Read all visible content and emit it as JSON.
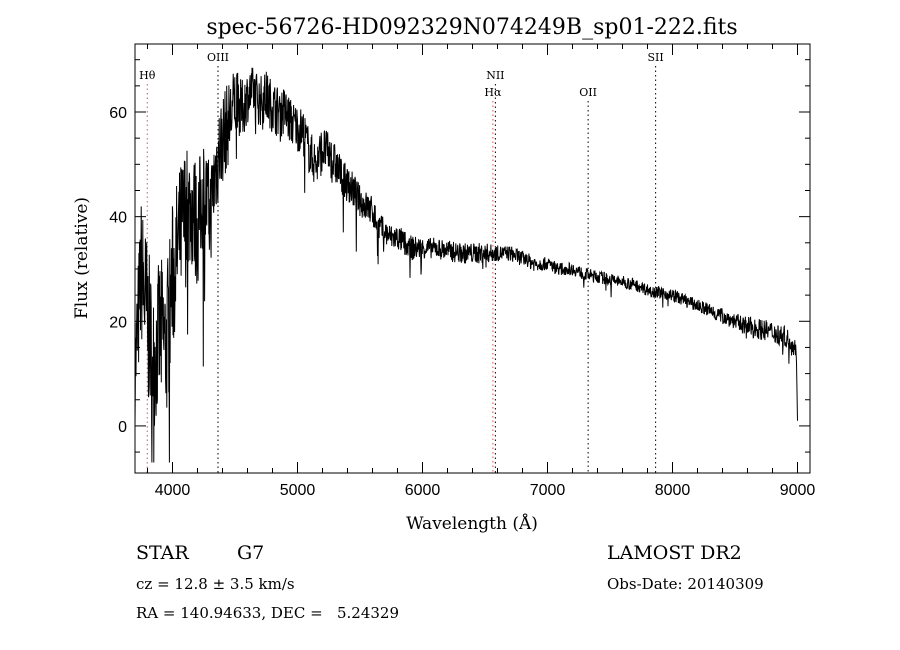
{
  "chart_data": {
    "type": "line",
    "title": "spec-56726-HD092329N074249B_sp01-222.fits",
    "xlabel": "Wavelength (Å)",
    "ylabel": "Flux (relative)",
    "xlim": [
      3700,
      9100
    ],
    "ylim": [
      -9,
      73
    ],
    "xticks": [
      4000,
      5000,
      6000,
      7000,
      8000,
      9000
    ],
    "yticks": [
      0,
      20,
      40,
      60
    ],
    "grid": false,
    "series": [
      {
        "x": [
          3700,
          3750,
          3800,
          3850,
          3900,
          3950,
          4000,
          4050,
          4100,
          4150,
          4200,
          4250,
          4300,
          4350,
          4400,
          4450,
          4500,
          4550,
          4600,
          4650,
          4700,
          4750,
          4800,
          4850,
          4900,
          4950,
          5000,
          5050,
          5100,
          5150,
          5200,
          5250,
          5300,
          5350,
          5400,
          5450,
          5500,
          5550,
          5600,
          5650,
          5700,
          5750,
          5800,
          5850,
          5900,
          6000,
          6100,
          6200,
          6300,
          6400,
          6500,
          6600,
          6700,
          6800,
          6900,
          7000,
          7100,
          7200,
          7300,
          7400,
          7500,
          7600,
          7700,
          7800,
          7900,
          8000,
          8100,
          8200,
          8300,
          8400,
          8500,
          8600,
          8700,
          8800,
          8900,
          8950,
          8990,
          9000
        ],
        "values": [
          10,
          30,
          20,
          12,
          18,
          15,
          28,
          35,
          40,
          42,
          38,
          45,
          40,
          50,
          55,
          58,
          62,
          60,
          63,
          64,
          62,
          63,
          61,
          60,
          60,
          58,
          57,
          56,
          52,
          50,
          53,
          52,
          50,
          48,
          46,
          45,
          43,
          42,
          41,
          38,
          37,
          36,
          36,
          35,
          34,
          34,
          34,
          33.5,
          33,
          33,
          33,
          33,
          33,
          32,
          31,
          31,
          30,
          30,
          29,
          28.5,
          28,
          27.5,
          27,
          26,
          25.5,
          25,
          24,
          23,
          22,
          21,
          20,
          19,
          18.5,
          18,
          17,
          16,
          15,
          1
        ],
        "noise": [
          10,
          14,
          16,
          13,
          15,
          15,
          15,
          14,
          14,
          12,
          12,
          11,
          10,
          10,
          9,
          8,
          7,
          6,
          5,
          5,
          5,
          5,
          5,
          5,
          5,
          4.5,
          4.5,
          4.5,
          4.5,
          4.5,
          4.5,
          4,
          4,
          3.5,
          3.5,
          3.5,
          3,
          3,
          3,
          3,
          2.5,
          2.5,
          2.5,
          2.5,
          2.5,
          2,
          2,
          2,
          2,
          2,
          2,
          1.5,
          1.5,
          1.5,
          1.5,
          1.2,
          1.2,
          1.2,
          1.2,
          1.2,
          1.2,
          1.2,
          1.2,
          1.2,
          1.2,
          1.2,
          1.2,
          1.2,
          1.5,
          1.5,
          1.5,
          2,
          2,
          2,
          2,
          2,
          2,
          0
        ]
      }
    ],
    "spectral_lines": [
      {
        "label": "Hθ",
        "x": 3798,
        "row": 1,
        "color": "#e05050"
      },
      {
        "label": "OIII",
        "x": 4364,
        "row": 0,
        "color": "#000000"
      },
      {
        "label": "NII",
        "x": 6583,
        "row": 1,
        "color": "#000000"
      },
      {
        "label": "Hα",
        "x": 6563,
        "row": 2,
        "color": "#e05050"
      },
      {
        "label": "OII",
        "x": 7325,
        "row": 2,
        "color": "#000000"
      },
      {
        "label": "SII",
        "x": 7865,
        "row": 0,
        "color": "#000000"
      }
    ]
  },
  "info": {
    "class": "STAR",
    "subclass": "G7",
    "release": "LAMOST DR2",
    "cz": "cz = 12.8 ± 3.5 km/s",
    "obs_date": "Obs-Date: 20140309",
    "coords": "RA = 140.94633, DEC =   5.24329"
  }
}
